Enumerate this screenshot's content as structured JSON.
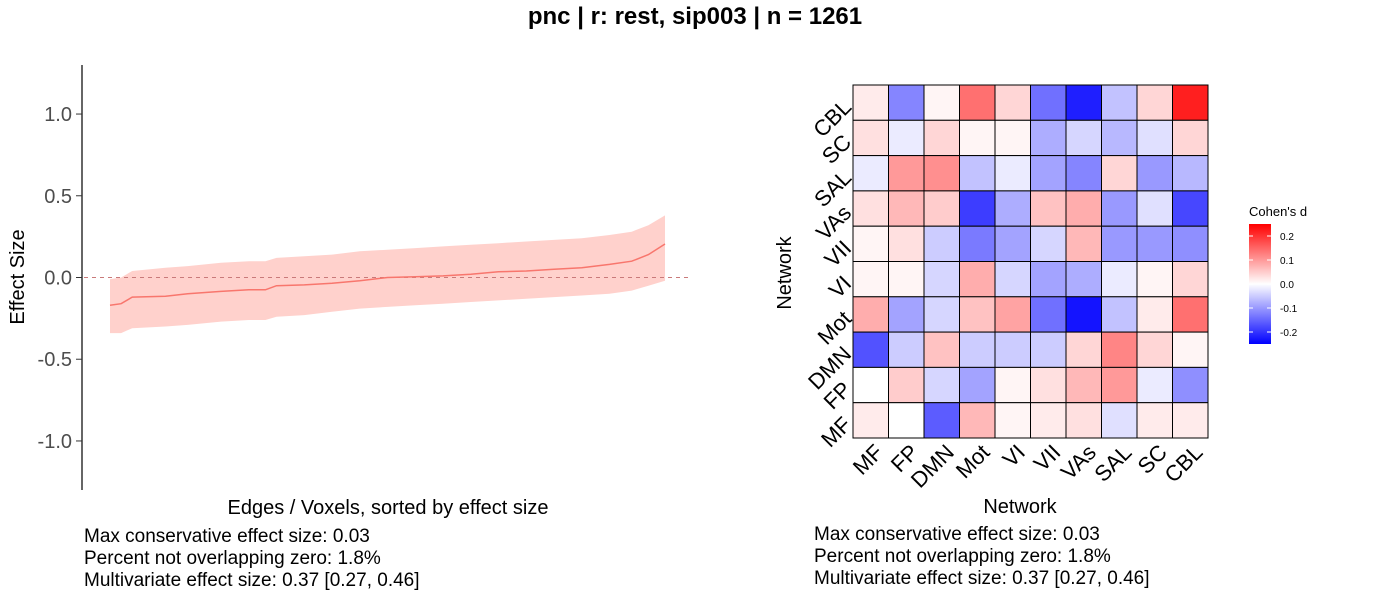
{
  "title": "pnc | r: rest, sip003 | n = 1261",
  "chart_data": [
    {
      "type": "area",
      "title": "",
      "xlabel": "Edges / Voxels, sorted by effect size",
      "ylabel": "Effect Size",
      "ylim": [
        -1.3,
        1.3
      ],
      "yticks": [
        "1.0",
        "0.5",
        "0.0",
        "-0.5",
        "-1.0"
      ],
      "ytick_values": [
        1.0,
        0.5,
        0.0,
        -0.5,
        -1.0
      ],
      "reference_line": 0,
      "colors": {
        "line": "#f8766d",
        "band": "#ffd1cc",
        "ref": "#c97a7a"
      },
      "series": [
        {
          "x": [
            0,
            0.02,
            0.04,
            0.1,
            0.14,
            0.2,
            0.25,
            0.28,
            0.3,
            0.35,
            0.4,
            0.45,
            0.5,
            0.55,
            0.6,
            0.65,
            0.7,
            0.75,
            0.8,
            0.85,
            0.9,
            0.94,
            0.97,
            1.0
          ],
          "estimate": [
            -0.17,
            -0.16,
            -0.12,
            -0.115,
            -0.1,
            -0.085,
            -0.075,
            -0.075,
            -0.05,
            -0.045,
            -0.035,
            -0.02,
            0.0,
            0.005,
            0.01,
            0.02,
            0.035,
            0.04,
            0.05,
            0.06,
            0.08,
            0.1,
            0.14,
            0.205
          ],
          "lower": [
            -0.34,
            -0.34,
            -0.31,
            -0.3,
            -0.29,
            -0.27,
            -0.26,
            -0.26,
            -0.24,
            -0.23,
            -0.21,
            -0.19,
            -0.18,
            -0.17,
            -0.16,
            -0.15,
            -0.14,
            -0.13,
            -0.12,
            -0.11,
            -0.1,
            -0.08,
            -0.05,
            -0.02
          ],
          "upper": [
            -0.01,
            0.0,
            0.04,
            0.06,
            0.07,
            0.09,
            0.1,
            0.1,
            0.12,
            0.13,
            0.14,
            0.16,
            0.17,
            0.18,
            0.19,
            0.2,
            0.21,
            0.22,
            0.23,
            0.24,
            0.26,
            0.28,
            0.32,
            0.38
          ]
        }
      ],
      "footer": [
        "Max conservative effect size: 0.03",
        "Percent not overlapping zero: 1.8%",
        "Multivariate effect size: 0.37 [0.27, 0.46]"
      ]
    },
    {
      "type": "heatmap",
      "title": "",
      "xlabel": "Network",
      "ylabel": "Network",
      "x_labels": [
        "MF",
        "FP",
        "DMN",
        "Mot",
        "VI",
        "VII",
        "VAs",
        "SAL",
        "SC",
        "CBL"
      ],
      "y_labels_top_to_bottom": [
        "CBL",
        "SC",
        "SAL",
        "VAs",
        "VII",
        "VI",
        "Mot",
        "DMN",
        "FP",
        "MF"
      ],
      "matrix_rows_top_to_bottom": [
        [
          0.02,
          -0.12,
          0.01,
          0.14,
          0.04,
          -0.14,
          -0.22,
          -0.06,
          0.04,
          0.22
        ],
        [
          0.03,
          -0.02,
          0.04,
          0.01,
          0.01,
          -0.08,
          -0.04,
          -0.07,
          -0.03,
          0.04
        ],
        [
          -0.02,
          0.1,
          0.11,
          -0.06,
          -0.02,
          -0.09,
          -0.12,
          0.04,
          -0.1,
          -0.07
        ],
        [
          0.03,
          0.07,
          0.05,
          -0.19,
          -0.08,
          0.06,
          0.08,
          -0.1,
          -0.03,
          -0.18
        ],
        [
          0.01,
          0.03,
          -0.05,
          -0.13,
          -0.09,
          -0.04,
          0.07,
          -0.1,
          -0.1,
          -0.11
        ],
        [
          0.01,
          0.01,
          -0.04,
          0.08,
          -0.04,
          -0.09,
          -0.08,
          -0.02,
          0.01,
          0.04
        ],
        [
          0.08,
          -0.09,
          -0.04,
          0.06,
          0.09,
          -0.14,
          -0.23,
          -0.06,
          0.02,
          0.14
        ],
        [
          -0.17,
          -0.05,
          0.06,
          -0.05,
          -0.05,
          -0.05,
          0.04,
          0.12,
          0.04,
          0.01
        ],
        [
          0.0,
          0.05,
          -0.04,
          -0.09,
          0.01,
          0.03,
          0.07,
          0.1,
          -0.02,
          -0.11
        ],
        [
          0.02,
          0.0,
          -0.16,
          0.07,
          0.01,
          0.02,
          0.03,
          -0.03,
          0.02,
          0.02
        ]
      ],
      "legend": {
        "title": "Cohen's d",
        "ticks": [
          "0.2",
          "0.1",
          "0.0",
          "-0.1",
          "-0.2"
        ],
        "tick_values": [
          0.2,
          0.1,
          0.0,
          -0.1,
          -0.2
        ],
        "range": [
          -0.25,
          0.25
        ],
        "colors": {
          "low": "#0000ff",
          "mid": "#ffffff",
          "high": "#ff0000"
        }
      },
      "footer": [
        "Max conservative effect size: 0.03",
        "Percent not overlapping zero: 1.8%",
        "Multivariate effect size: 0.37 [0.27, 0.46]"
      ]
    }
  ]
}
